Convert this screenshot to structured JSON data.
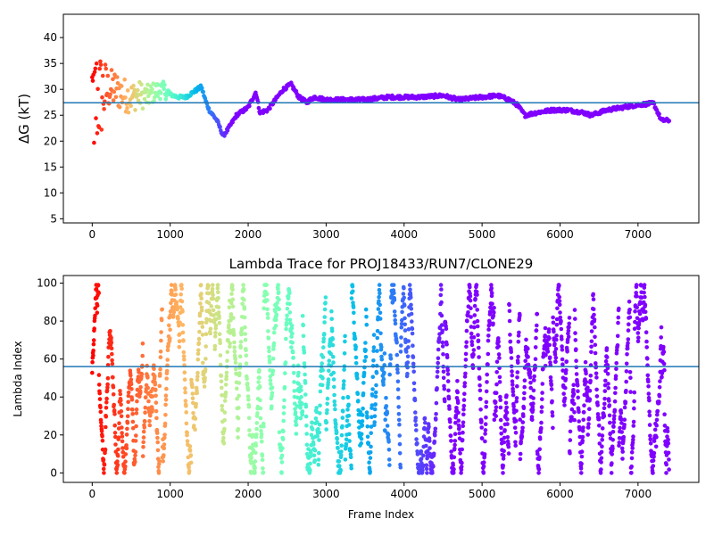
{
  "chart_data": [
    {
      "type": "scatter",
      "title": "",
      "xlabel": "",
      "ylabel": "ΔG (kT)",
      "xlim": [
        -370,
        7780
      ],
      "ylim": [
        4.2,
        44.5
      ],
      "xticks": [
        0,
        1000,
        2000,
        3000,
        4000,
        5000,
        6000,
        7000
      ],
      "yticks": [
        5,
        10,
        15,
        20,
        25,
        30,
        35,
        40
      ],
      "hline": 27.4,
      "colormap": "rainbow",
      "colormap_range": [
        0,
        1800
      ],
      "hline_color": "#1f77b4",
      "trend_points": [
        [
          0,
          28
        ],
        [
          100,
          28.5
        ],
        [
          200,
          30
        ],
        [
          300,
          30
        ],
        [
          400,
          29
        ],
        [
          500,
          28.5
        ],
        [
          600,
          29
        ],
        [
          700,
          28.5
        ],
        [
          800,
          29.5
        ],
        [
          900,
          30
        ],
        [
          1000,
          29
        ],
        [
          1100,
          28.5
        ],
        [
          1200,
          28.5
        ],
        [
          1300,
          29.5
        ],
        [
          1400,
          30.5
        ],
        [
          1450,
          28
        ],
        [
          1500,
          26
        ],
        [
          1600,
          24
        ],
        [
          1680,
          21
        ],
        [
          1750,
          22.5
        ],
        [
          1850,
          25
        ],
        [
          2000,
          26.5
        ],
        [
          2100,
          29.5
        ],
        [
          2150,
          25.5
        ],
        [
          2250,
          26
        ],
        [
          2350,
          28
        ],
        [
          2450,
          30
        ],
        [
          2550,
          31
        ],
        [
          2650,
          28.5
        ],
        [
          2750,
          27.5
        ],
        [
          2850,
          28.5
        ],
        [
          3000,
          28
        ],
        [
          3200,
          28
        ],
        [
          3500,
          28
        ],
        [
          3800,
          28.5
        ],
        [
          4000,
          28.5
        ],
        [
          4200,
          28.5
        ],
        [
          4500,
          28.8
        ],
        [
          4700,
          28
        ],
        [
          5000,
          28.5
        ],
        [
          5200,
          28.8
        ],
        [
          5350,
          28
        ],
        [
          5450,
          27
        ],
        [
          5550,
          25
        ],
        [
          5700,
          25.5
        ],
        [
          5900,
          26
        ],
        [
          6100,
          26
        ],
        [
          6300,
          25.5
        ],
        [
          6400,
          25
        ],
        [
          6600,
          26
        ],
        [
          6800,
          26.5
        ],
        [
          7000,
          27
        ],
        [
          7200,
          27.3
        ],
        [
          7300,
          24
        ],
        [
          7400,
          24
        ]
      ]
    },
    {
      "type": "scatter",
      "title": "Lambda Trace for PROJ18433/RUN7/CLONE29",
      "xlabel": "Frame Index",
      "ylabel": "Lambda Index",
      "xlim": [
        -370,
        7780
      ],
      "ylim": [
        -5,
        104
      ],
      "xticks": [
        0,
        1000,
        2000,
        3000,
        4000,
        5000,
        6000,
        7000
      ],
      "yticks": [
        0,
        20,
        40,
        60,
        80,
        100
      ],
      "hline": 56,
      "colormap": "rainbow",
      "colormap_range": [
        0,
        4600
      ],
      "hline_color": "#1f77b4",
      "value_range": [
        0,
        99
      ],
      "frame_range": [
        0,
        7400
      ]
    }
  ]
}
